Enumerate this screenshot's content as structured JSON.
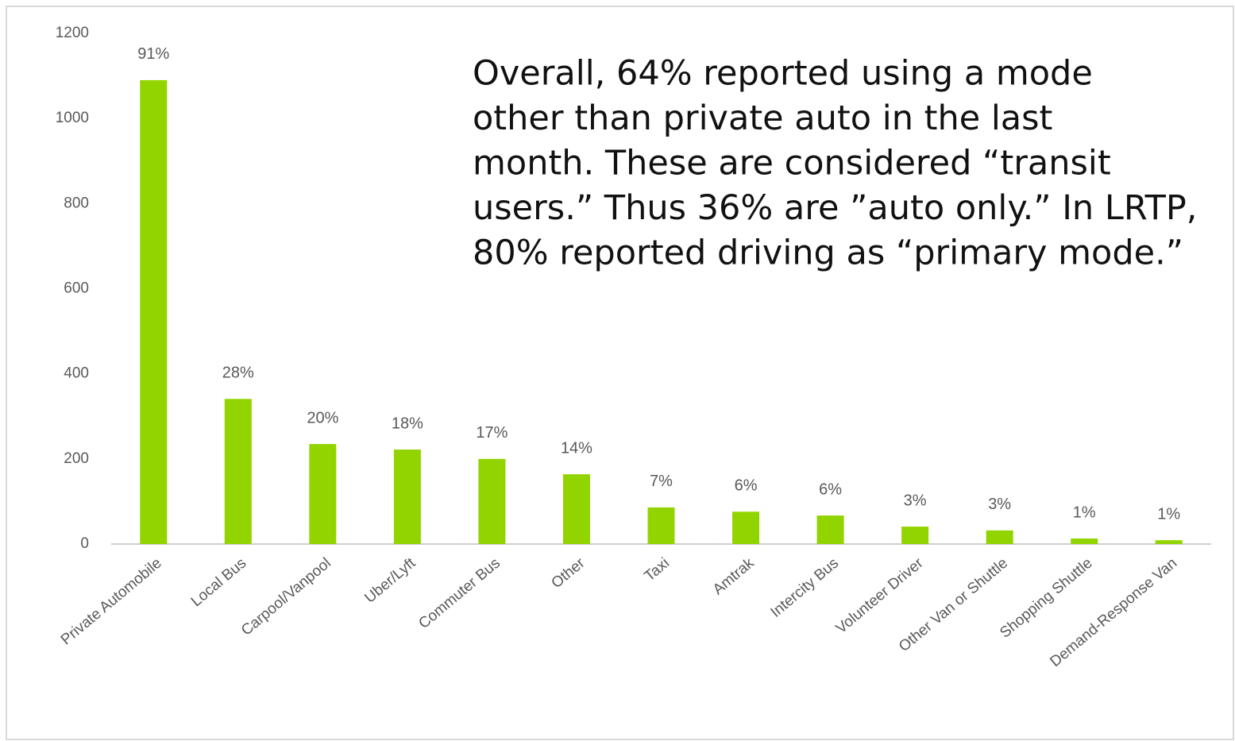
{
  "chart_data": {
    "type": "bar",
    "categories": [
      "Private Automobile",
      "Local Bus",
      "Carpool/Vanpool",
      "Uber/Lyft",
      "Commuter Bus",
      "Other",
      "Taxi",
      "Amtrak",
      "Intercity Bus",
      "Volunteer Driver",
      "Other Van or Shuttle",
      "Shopping Shuttle",
      "Demand-Response Van"
    ],
    "values": [
      1090,
      341,
      235,
      222,
      200,
      164,
      86,
      76,
      67,
      41,
      32,
      13,
      9
    ],
    "data_labels": [
      "91%",
      "28%",
      "20%",
      "18%",
      "17%",
      "14%",
      "7%",
      "6%",
      "6%",
      "3%",
      "3%",
      "1%",
      "1%"
    ],
    "color": "#92d400",
    "ylim": [
      0,
      1200
    ],
    "yticks": [
      0,
      200,
      400,
      600,
      800,
      1000,
      1200
    ],
    "grid": false,
    "annotation": [
      "Overall, 64% reported using a mode",
      "other than private auto in the last",
      "month. These are considered “transit",
      "users.” Thus 36% are ”auto only.” In LRTP,",
      "80% reported driving as “primary mode.”"
    ]
  }
}
